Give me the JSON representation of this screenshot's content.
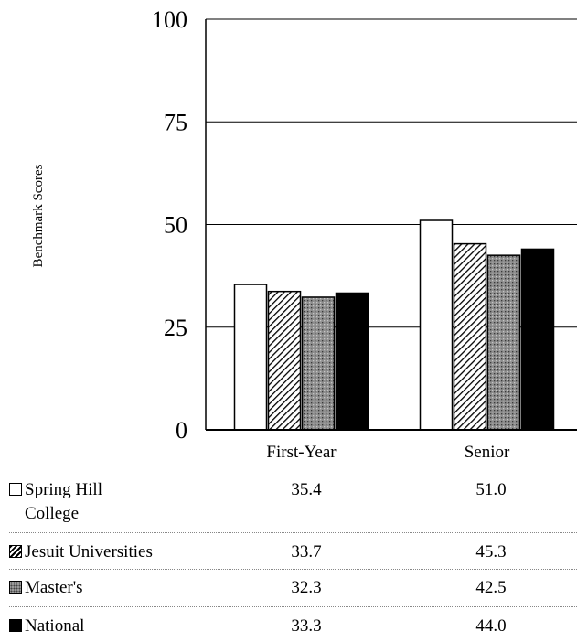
{
  "chart_data": {
    "type": "bar",
    "ylabel": "Benchmark Scores",
    "xlabel": "",
    "title": "",
    "ylim": [
      0,
      100
    ],
    "yticks": [
      "0",
      "25",
      "50",
      "75",
      "100"
    ],
    "categories": [
      "First-Year",
      "Senior"
    ],
    "grid": true,
    "series": [
      {
        "name": "Spring Hill College",
        "values": [
          35.4,
          51.0
        ],
        "labels": [
          "35.4",
          "51.0"
        ],
        "fill": "white"
      },
      {
        "name": "Jesuit Universities",
        "values": [
          33.7,
          45.3
        ],
        "labels": [
          "33.7",
          "45.3"
        ],
        "fill": "hatch"
      },
      {
        "name": "Master's",
        "values": [
          32.3,
          42.5
        ],
        "labels": [
          "32.3",
          "42.5"
        ],
        "fill": "gray"
      },
      {
        "name": "National",
        "values": [
          33.3,
          44.0
        ],
        "labels": [
          "33.3",
          "44.0"
        ],
        "fill": "black"
      }
    ]
  },
  "legend_lines": [
    [
      "Spring Hill",
      "College"
    ],
    [
      "Jesuit Universities"
    ],
    [
      "Master's"
    ],
    [
      "National"
    ]
  ]
}
